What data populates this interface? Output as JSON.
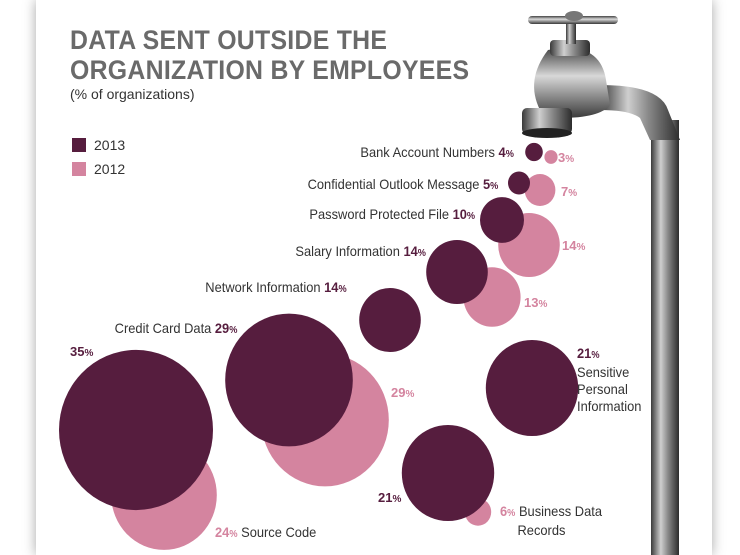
{
  "title_line1": "DATA SENT OUTSIDE THE",
  "title_line2": "ORGANIZATION BY EMPLOYEES",
  "subtitle": "(% of organizations)",
  "colors": {
    "y2013": "#561d3e",
    "y2012": "#d4849f",
    "title": "#6a6a6a"
  },
  "legend": [
    {
      "label": "2013",
      "color": "#561d3e"
    },
    {
      "label": "2012",
      "color": "#d4849f"
    }
  ],
  "chart_data": {
    "type": "bubble",
    "title": "DATA SENT OUTSIDE THE ORGANIZATION BY EMPLOYEES",
    "subtitle": "(% of organizations)",
    "unit": "%",
    "legend_placement": "top-left",
    "series": [
      {
        "name": "2013",
        "values": [
          4,
          5,
          10,
          14,
          14,
          29,
          35,
          21,
          21
        ]
      },
      {
        "name": "2012",
        "values": [
          3,
          7,
          14,
          13,
          null,
          29,
          24,
          null,
          6
        ]
      }
    ],
    "categories": [
      "Bank Account Numbers",
      "Confidential Outlook Message",
      "Password Protected File",
      "Salary Information",
      "Network Information",
      "Credit Card Data",
      "Source Code",
      "Sensitive Personal Information",
      "Business Data Records"
    ],
    "labels": {
      "bank": {
        "name": "Bank Account Numbers",
        "v2013": "4",
        "v2012": "3"
      },
      "outlook": {
        "name": "Confidential Outlook Message",
        "v2013": "5",
        "v2012": "7"
      },
      "password": {
        "name": "Password Protected File",
        "v2013": "10",
        "v2012": "14"
      },
      "salary": {
        "name": "Salary Information",
        "v2013": "14",
        "v2012": "13"
      },
      "network": {
        "name": "Network Information",
        "v2013": "14"
      },
      "credit": {
        "name": "Credit Card Data",
        "v2013": "29",
        "v2012": "29"
      },
      "source": {
        "name": "Source Code",
        "v2013": "35",
        "v2012": "24"
      },
      "sensitive": {
        "name_line1": "Sensitive",
        "name_line2": "Personal",
        "name_line3": "Information",
        "v2013": "21"
      },
      "business": {
        "name_line1": "Business Data",
        "name_line2": "Records",
        "v2013": "21",
        "v2012": "6"
      }
    },
    "pct_sign": "%"
  },
  "image": "faucet-icon"
}
